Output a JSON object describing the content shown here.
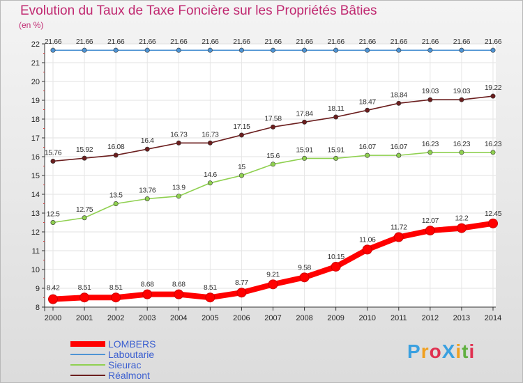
{
  "chart_data": {
    "type": "line",
    "title": "Evolution du Taux de Taxe Foncière sur les Propriétés Bâties",
    "unit_label": "(en %)",
    "x": [
      2000,
      2001,
      2002,
      2003,
      2004,
      2005,
      2006,
      2007,
      2008,
      2009,
      2010,
      2011,
      2012,
      2013,
      2014
    ],
    "ylim": [
      8,
      22
    ],
    "y_ticks": [
      8,
      9,
      10,
      11,
      12,
      13,
      14,
      15,
      16,
      17,
      18,
      19,
      20,
      21,
      22
    ],
    "grid": true,
    "legend_position": "bottom-left",
    "series": [
      {
        "name": "LOMBERS",
        "color": "#ff0000",
        "highlight": true,
        "values": [
          8.42,
          8.51,
          8.51,
          8.68,
          8.68,
          8.51,
          8.77,
          9.21,
          9.58,
          10.15,
          11.06,
          11.72,
          12.07,
          12.2,
          12.45
        ]
      },
      {
        "name": "Laboutarie",
        "color": "#4f94d4",
        "values": [
          21.66,
          21.66,
          21.66,
          21.66,
          21.66,
          21.66,
          21.66,
          21.66,
          21.66,
          21.66,
          21.66,
          21.66,
          21.66,
          21.66,
          21.66
        ]
      },
      {
        "name": "Sieurac",
        "color": "#8fd050",
        "values": [
          12.5,
          12.75,
          13.5,
          13.76,
          13.9,
          14.6,
          15,
          15.6,
          15.91,
          15.91,
          16.07,
          16.07,
          16.23,
          16.23,
          16.23
        ]
      },
      {
        "name": "Réalmont",
        "color": "#6b1e1e",
        "values": [
          15.76,
          15.92,
          16.08,
          16.4,
          16.73,
          16.73,
          17.15,
          17.58,
          17.84,
          18.11,
          18.47,
          18.84,
          19.03,
          19.03,
          19.22
        ]
      }
    ],
    "data_labels": {
      "LOMBERS": [
        "8.42",
        "8.51",
        "8.51",
        "8.68",
        "8.68",
        "8.51",
        "8.77",
        "9.21",
        "9.58",
        "10.15",
        "11.06",
        "11.72",
        "12.07",
        "12.2",
        "12.45"
      ],
      "Laboutarie": [
        "21.66",
        "21.66",
        "21.66",
        "21.66",
        "21.66",
        "21.66",
        "21.66",
        "21.66",
        "21.66",
        "21.66",
        "21.66",
        "21.66",
        "21.66",
        "21.66",
        "21.66"
      ],
      "Sieurac": [
        "12.5",
        "12.75",
        "13.5",
        "13.76",
        "13.9",
        "14.6",
        "15",
        "15.6",
        "15.91",
        "15.91",
        "16.07",
        "16.07",
        "16.23",
        "16.23",
        "16.23"
      ],
      "Réalmont": [
        "15.76",
        "15.92",
        "16.08",
        "16.4",
        "16.73",
        "16.73",
        "17.15",
        "17.58",
        "17.84",
        "18.11",
        "18.47",
        "18.84",
        "19.03",
        "19.03",
        "19.22"
      ]
    }
  },
  "brand": {
    "text": "ProXiti",
    "letter_colors": [
      "#3aa0e0",
      "#f0a020",
      "#e03050",
      "#3aa0e0",
      "#f0a020",
      "#60b040",
      "#e03050"
    ]
  }
}
